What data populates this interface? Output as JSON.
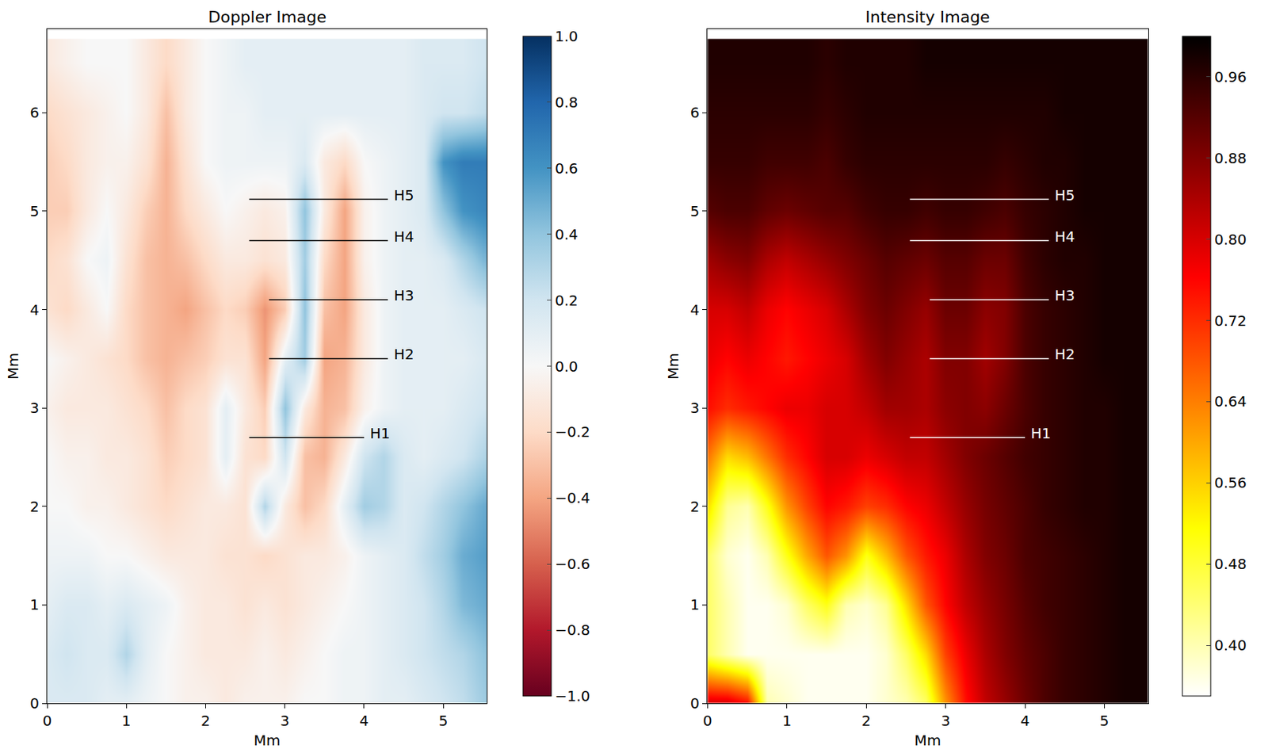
{
  "chart_data": [
    {
      "type": "heatmap",
      "title": "Doppler Image",
      "x_label": "Mm",
      "y_label": "Mm",
      "color": "RdBu",
      "x": [
        0,
        0.25,
        0.5,
        0.75,
        1,
        1.25,
        1.5,
        1.75,
        2,
        2.25,
        2.5,
        2.75,
        3,
        3.25,
        3.5,
        3.75,
        4,
        4.25,
        4.5,
        4.75,
        5,
        5.25,
        5.5
      ],
      "y": [
        0,
        0.5,
        1,
        1.5,
        2,
        2.5,
        3,
        3.5,
        4,
        4.5,
        5,
        5.5,
        6,
        6.5
      ],
      "cells": [
        [
          0.15,
          0.15,
          0.15,
          0.1,
          0.1,
          0.05,
          0.0,
          -0.05,
          -0.05,
          -0.1,
          -0.05,
          -0.05,
          -0.05,
          0.0,
          0.0,
          0.05,
          0.05,
          0.1,
          0.1,
          0.15,
          0.2,
          0.25,
          0.35
        ],
        [
          0.15,
          0.2,
          0.15,
          0.15,
          0.3,
          0.1,
          0.0,
          -0.05,
          -0.1,
          -0.1,
          -0.1,
          -0.05,
          -0.1,
          -0.05,
          0.0,
          0.05,
          0.05,
          0.1,
          0.15,
          0.2,
          0.25,
          0.3,
          0.4
        ],
        [
          0.1,
          0.15,
          0.15,
          0.1,
          0.15,
          0.1,
          0.05,
          -0.05,
          -0.1,
          -0.1,
          -0.15,
          -0.1,
          -0.15,
          -0.1,
          -0.05,
          0.0,
          0.05,
          0.1,
          0.15,
          0.2,
          0.3,
          0.45,
          0.5
        ],
        [
          0.05,
          0.05,
          0.05,
          0.0,
          0.0,
          -0.05,
          -0.1,
          -0.1,
          -0.1,
          -0.15,
          -0.15,
          -0.2,
          -0.15,
          -0.1,
          -0.1,
          -0.05,
          0.05,
          0.1,
          0.15,
          0.25,
          0.35,
          0.5,
          0.55
        ],
        [
          0.0,
          0.0,
          -0.05,
          -0.05,
          -0.1,
          -0.15,
          -0.2,
          -0.15,
          -0.1,
          -0.1,
          -0.15,
          0.3,
          -0.1,
          -0.3,
          -0.2,
          0.1,
          0.35,
          0.3,
          0.15,
          0.2,
          0.3,
          0.4,
          0.5
        ],
        [
          0.0,
          -0.05,
          -0.05,
          -0.1,
          -0.1,
          -0.15,
          -0.25,
          -0.2,
          -0.15,
          0.1,
          -0.15,
          -0.2,
          0.2,
          -0.3,
          -0.35,
          -0.1,
          0.2,
          0.3,
          0.15,
          0.1,
          0.15,
          0.2,
          0.3
        ],
        [
          -0.05,
          -0.1,
          -0.1,
          -0.1,
          -0.15,
          -0.2,
          -0.3,
          -0.2,
          -0.15,
          0.1,
          -0.1,
          -0.25,
          0.4,
          -0.1,
          -0.35,
          -0.3,
          -0.05,
          0.05,
          0.1,
          0.1,
          0.1,
          0.15,
          0.2
        ],
        [
          0.0,
          -0.05,
          -0.1,
          -0.15,
          -0.2,
          -0.3,
          -0.35,
          -0.3,
          -0.25,
          -0.15,
          -0.15,
          -0.4,
          0.1,
          0.35,
          -0.4,
          -0.35,
          -0.1,
          0.05,
          0.1,
          0.1,
          0.1,
          0.1,
          0.15
        ],
        [
          -0.15,
          -0.2,
          -0.1,
          0.0,
          -0.2,
          -0.3,
          -0.35,
          -0.4,
          -0.3,
          -0.2,
          -0.25,
          -0.45,
          -0.25,
          0.4,
          -0.3,
          -0.4,
          -0.1,
          0.05,
          0.1,
          0.1,
          0.1,
          0.15,
          0.2
        ],
        [
          -0.2,
          -0.15,
          0.0,
          0.05,
          -0.15,
          -0.3,
          -0.35,
          -0.3,
          -0.2,
          -0.1,
          -0.1,
          -0.15,
          -0.1,
          0.35,
          -0.2,
          -0.4,
          -0.05,
          0.05,
          0.1,
          0.1,
          0.15,
          0.3,
          0.45
        ],
        [
          -0.25,
          -0.25,
          -0.1,
          0.0,
          -0.1,
          -0.25,
          -0.35,
          -0.2,
          -0.1,
          0.0,
          -0.05,
          -0.1,
          -0.05,
          0.4,
          -0.1,
          -0.4,
          -0.05,
          0.05,
          0.1,
          0.15,
          0.4,
          0.6,
          0.65
        ],
        [
          -0.25,
          -0.2,
          -0.1,
          -0.05,
          -0.05,
          -0.15,
          -0.35,
          -0.15,
          0.0,
          0.05,
          0.05,
          0.05,
          0.05,
          0.15,
          -0.1,
          -0.2,
          0.0,
          0.05,
          0.1,
          0.15,
          0.6,
          0.7,
          0.7
        ],
        [
          -0.2,
          -0.15,
          -0.1,
          -0.05,
          0.0,
          -0.1,
          -0.3,
          -0.1,
          0.0,
          0.05,
          0.05,
          0.1,
          0.1,
          0.1,
          0.1,
          0.1,
          0.1,
          0.1,
          0.1,
          0.15,
          0.2,
          0.2,
          0.25
        ],
        [
          -0.1,
          -0.05,
          0.0,
          0.0,
          0.0,
          -0.1,
          -0.2,
          -0.1,
          0.0,
          0.05,
          0.1,
          0.1,
          0.1,
          0.1,
          0.1,
          0.1,
          0.1,
          0.1,
          0.1,
          0.15,
          0.15,
          0.15,
          0.2
        ]
      ],
      "xlim": [
        0,
        5.55
      ],
      "ylim": [
        0,
        6.85
      ],
      "xticks": [
        0,
        1,
        2,
        3,
        4,
        5
      ],
      "yticks": [
        0,
        1,
        2,
        3,
        4,
        5,
        6
      ],
      "color_range": [
        -1,
        1
      ],
      "color_ticks": [
        {
          "value": -1,
          "label": "−1.0"
        },
        {
          "value": -0.8,
          "label": "−0.8"
        },
        {
          "value": -0.6,
          "label": "−0.6"
        },
        {
          "value": -0.4,
          "label": "−0.4"
        },
        {
          "value": -0.2,
          "label": "−0.2"
        },
        {
          "value": 0,
          "label": "0.0"
        },
        {
          "value": 0.2,
          "label": "0.2"
        },
        {
          "value": 0.4,
          "label": "0.4"
        },
        {
          "value": 0.6,
          "label": "0.6"
        },
        {
          "value": 0.8,
          "label": "0.8"
        },
        {
          "value": 1,
          "label": "1.0"
        }
      ],
      "annotations": [
        {
          "text": "H5",
          "x": [
            2.55,
            4.3
          ],
          "y": 5.12,
          "color": "black"
        },
        {
          "text": "H4",
          "x": [
            2.55,
            4.3
          ],
          "y": 4.7,
          "color": "black"
        },
        {
          "text": "H3",
          "x": [
            2.8,
            4.3
          ],
          "y": 4.1,
          "color": "black"
        },
        {
          "text": "H2",
          "x": [
            2.8,
            4.3
          ],
          "y": 3.5,
          "color": "black"
        },
        {
          "text": "H1",
          "x": [
            2.55,
            4.0
          ],
          "y": 2.7,
          "color": "black"
        }
      ]
    },
    {
      "type": "heatmap",
      "title": "Intensity Image",
      "x_label": "Mm",
      "y_label": "Mm",
      "color": "hot_r",
      "x": [
        0,
        0.25,
        0.5,
        0.75,
        1,
        1.25,
        1.5,
        1.75,
        2,
        2.25,
        2.5,
        2.75,
        3,
        3.25,
        3.5,
        3.75,
        4,
        4.25,
        4.5,
        4.75,
        5,
        5.25,
        5.5
      ],
      "y": [
        0,
        0.5,
        1,
        1.5,
        2,
        2.5,
        3,
        3.5,
        4,
        4.5,
        5,
        5.5,
        6,
        6.5
      ],
      "cells": [
        [
          0.8,
          0.8,
          0.75,
          0.4,
          0.38,
          0.36,
          0.36,
          0.36,
          0.36,
          0.38,
          0.4,
          0.45,
          0.62,
          0.75,
          0.82,
          0.86,
          0.9,
          0.93,
          0.95,
          0.96,
          0.97,
          0.98,
          0.98
        ],
        [
          0.45,
          0.4,
          0.36,
          0.36,
          0.36,
          0.36,
          0.36,
          0.36,
          0.36,
          0.38,
          0.45,
          0.55,
          0.7,
          0.78,
          0.84,
          0.88,
          0.91,
          0.93,
          0.95,
          0.96,
          0.97,
          0.98,
          0.98
        ],
        [
          0.45,
          0.4,
          0.36,
          0.36,
          0.38,
          0.45,
          0.5,
          0.4,
          0.38,
          0.42,
          0.55,
          0.68,
          0.76,
          0.82,
          0.86,
          0.89,
          0.92,
          0.94,
          0.95,
          0.96,
          0.97,
          0.98,
          0.98
        ],
        [
          0.45,
          0.38,
          0.36,
          0.4,
          0.5,
          0.6,
          0.68,
          0.62,
          0.5,
          0.58,
          0.68,
          0.74,
          0.78,
          0.84,
          0.88,
          0.9,
          0.93,
          0.94,
          0.95,
          0.96,
          0.97,
          0.98,
          0.98
        ],
        [
          0.55,
          0.42,
          0.4,
          0.5,
          0.62,
          0.7,
          0.76,
          0.74,
          0.7,
          0.72,
          0.76,
          0.78,
          0.82,
          0.86,
          0.89,
          0.91,
          0.93,
          0.95,
          0.96,
          0.97,
          0.97,
          0.98,
          0.98
        ],
        [
          0.65,
          0.55,
          0.58,
          0.65,
          0.72,
          0.76,
          0.8,
          0.8,
          0.78,
          0.8,
          0.82,
          0.82,
          0.85,
          0.88,
          0.9,
          0.92,
          0.94,
          0.95,
          0.96,
          0.97,
          0.97,
          0.98,
          0.98
        ],
        [
          0.75,
          0.72,
          0.74,
          0.76,
          0.78,
          0.78,
          0.8,
          0.8,
          0.82,
          0.85,
          0.85,
          0.84,
          0.87,
          0.88,
          0.87,
          0.9,
          0.93,
          0.95,
          0.96,
          0.97,
          0.97,
          0.98,
          0.98
        ],
        [
          0.78,
          0.76,
          0.78,
          0.76,
          0.74,
          0.76,
          0.78,
          0.8,
          0.85,
          0.88,
          0.86,
          0.84,
          0.88,
          0.88,
          0.85,
          0.88,
          0.93,
          0.95,
          0.96,
          0.97,
          0.98,
          0.98,
          0.98
        ],
        [
          0.8,
          0.8,
          0.82,
          0.78,
          0.76,
          0.78,
          0.8,
          0.84,
          0.88,
          0.9,
          0.88,
          0.86,
          0.9,
          0.9,
          0.87,
          0.88,
          0.93,
          0.95,
          0.96,
          0.97,
          0.98,
          0.98,
          0.98
        ],
        [
          0.85,
          0.87,
          0.88,
          0.84,
          0.82,
          0.84,
          0.86,
          0.88,
          0.9,
          0.92,
          0.91,
          0.9,
          0.92,
          0.92,
          0.9,
          0.9,
          0.94,
          0.96,
          0.97,
          0.97,
          0.98,
          0.98,
          0.98
        ],
        [
          0.92,
          0.93,
          0.93,
          0.91,
          0.9,
          0.91,
          0.92,
          0.92,
          0.94,
          0.95,
          0.95,
          0.94,
          0.95,
          0.95,
          0.94,
          0.93,
          0.95,
          0.96,
          0.97,
          0.98,
          0.98,
          0.98,
          0.98
        ],
        [
          0.95,
          0.95,
          0.95,
          0.94,
          0.94,
          0.94,
          0.93,
          0.95,
          0.96,
          0.96,
          0.96,
          0.96,
          0.96,
          0.96,
          0.96,
          0.95,
          0.96,
          0.97,
          0.97,
          0.98,
          0.98,
          0.98,
          0.98
        ],
        [
          0.96,
          0.96,
          0.96,
          0.96,
          0.96,
          0.96,
          0.95,
          0.96,
          0.97,
          0.97,
          0.97,
          0.97,
          0.97,
          0.97,
          0.97,
          0.97,
          0.97,
          0.97,
          0.98,
          0.98,
          0.98,
          0.98,
          0.98
        ],
        [
          0.97,
          0.97,
          0.97,
          0.97,
          0.97,
          0.97,
          0.96,
          0.97,
          0.97,
          0.97,
          0.97,
          0.98,
          0.98,
          0.98,
          0.98,
          0.98,
          0.98,
          0.98,
          0.98,
          0.98,
          0.98,
          0.98,
          0.98
        ]
      ],
      "xlim": [
        0,
        5.55
      ],
      "ylim": [
        0,
        6.85
      ],
      "xticks": [
        0,
        1,
        2,
        3,
        4,
        5
      ],
      "yticks": [
        0,
        1,
        2,
        3,
        4,
        5,
        6
      ],
      "color_range": [
        0.35,
        1.0
      ],
      "color_ticks": [
        {
          "value": 0.4,
          "label": "0.40"
        },
        0.48,
        0.56,
        0.64,
        0.72,
        {
          "value": 0.8,
          "label": "0.80"
        },
        0.88,
        0.96
      ],
      "annotations": [
        {
          "text": "H5",
          "x": [
            2.55,
            4.3
          ],
          "y": 5.12,
          "color": "white"
        },
        {
          "text": "H4",
          "x": [
            2.55,
            4.3
          ],
          "y": 4.7,
          "color": "white"
        },
        {
          "text": "H3",
          "x": [
            2.8,
            4.3
          ],
          "y": 4.1,
          "color": "white"
        },
        {
          "text": "H2",
          "x": [
            2.8,
            4.3
          ],
          "y": 3.5,
          "color": "white"
        },
        {
          "text": "H1",
          "x": [
            2.55,
            4.0
          ],
          "y": 2.7,
          "color": "white"
        }
      ]
    }
  ]
}
